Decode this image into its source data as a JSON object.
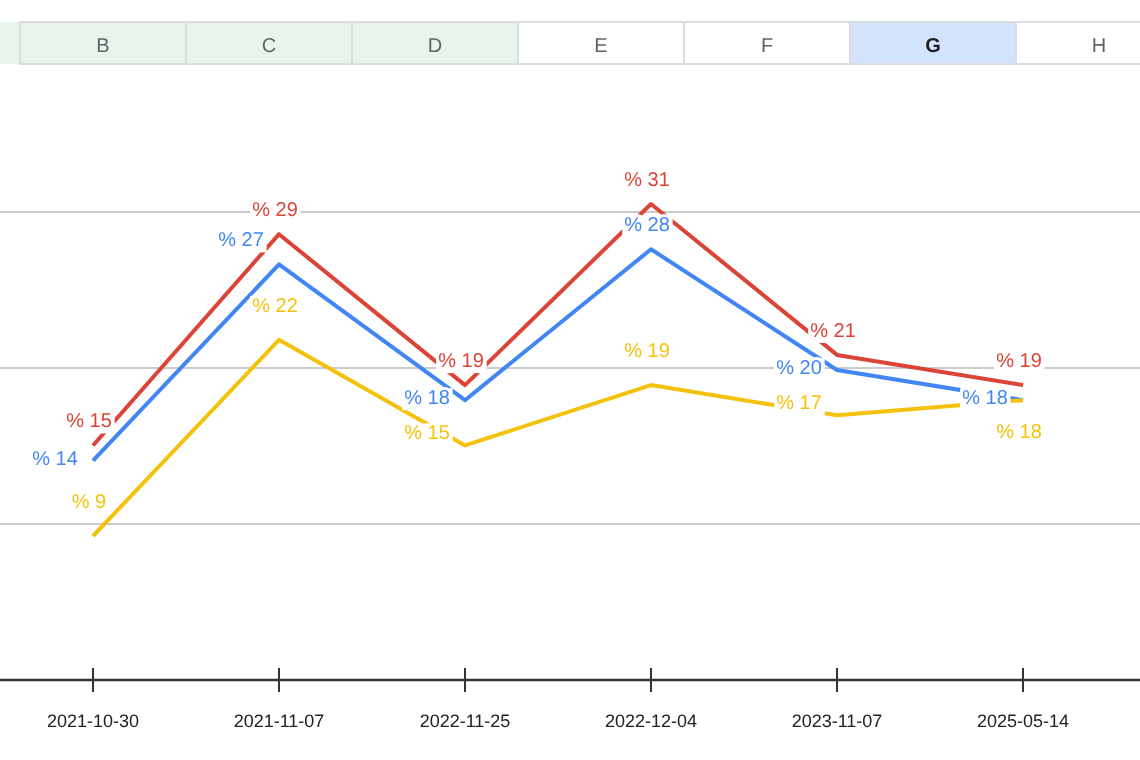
{
  "chart_data": {
    "type": "line",
    "categories": [
      "2021-10-30",
      "2021-11-07",
      "2022-11-25",
      "2022-12-04",
      "2023-11-07",
      "2025-05-14"
    ],
    "series": [
      {
        "color": "#db4437",
        "values": [
          15,
          29,
          19,
          31,
          21,
          19
        ],
        "value_labels": [
          "% 15",
          "% 29",
          "% 19",
          "% 31",
          "% 21",
          "% 19"
        ]
      },
      {
        "color": "#4285f4",
        "values": [
          14,
          27,
          18,
          28,
          20,
          18
        ],
        "value_labels": [
          "% 14",
          "% 27",
          "% 18",
          "% 28",
          "% 20",
          "% 18"
        ]
      },
      {
        "color": "#f4c20d",
        "values": [
          9,
          22,
          15,
          19,
          17,
          18
        ],
        "value_labels": [
          "% 9",
          "% 22",
          "% 15",
          "% 19",
          "% 17",
          "% 18"
        ]
      }
    ],
    "tick_labels": "x",
    "marker": "none",
    "line_style": "solid",
    "annotations": [
      "B",
      "C",
      "D",
      "E",
      "F",
      "G",
      "H"
    ]
  }
}
